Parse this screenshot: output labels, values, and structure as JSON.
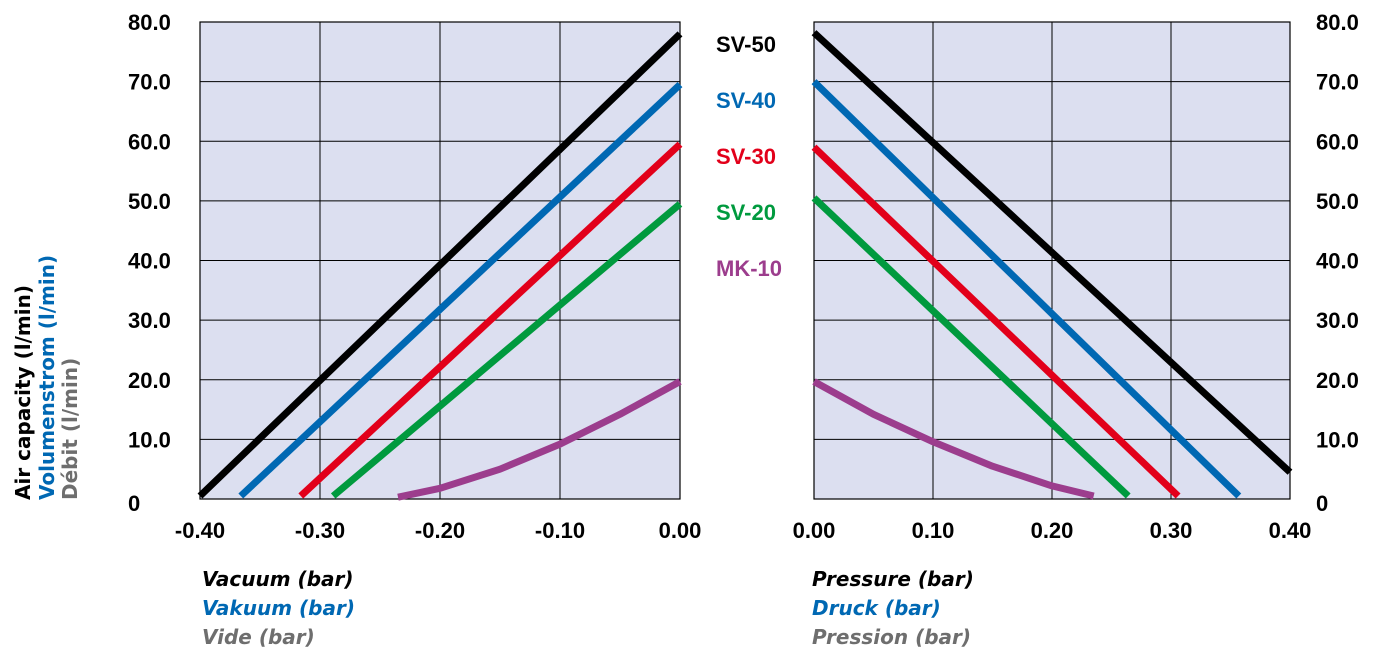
{
  "colors": {
    "plot_bg": "#dcdff0",
    "grid": "#000000",
    "english": "#000000",
    "german": "#0068b3",
    "french": "#6e6e6e"
  },
  "y_axis": {
    "labels": [
      "Air capacity (l/min)",
      "Volumenstrom (l/min)",
      "Débit (l/min)"
    ],
    "ticks": [
      "0",
      "10.0",
      "20.0",
      "30.0",
      "40.0",
      "50.0",
      "60.0",
      "70.0",
      "80.0"
    ]
  },
  "legend": [
    {
      "name": "SV-50",
      "color": "#000000"
    },
    {
      "name": "SV-40",
      "color": "#0068b3"
    },
    {
      "name": "SV-30",
      "color": "#e2001a"
    },
    {
      "name": "SV-20",
      "color": "#009a3e"
    },
    {
      "name": "MK-10",
      "color": "#9c3d8d"
    }
  ],
  "chart_data": [
    {
      "type": "line",
      "xlabel": [
        "Vacuum (bar)",
        "Vakuum (bar)",
        "Vide (bar)"
      ],
      "ylabel": [
        "Air capacity (l/min)",
        "Volumenstrom (l/min)",
        "Débit (l/min)"
      ],
      "xlim": [
        -0.4,
        0.0
      ],
      "ylim": [
        0,
        80
      ],
      "x_ticks": [
        "-0.40",
        "-0.30",
        "-0.20",
        "-0.10",
        "0.00"
      ],
      "x_tick_values": [
        -0.4,
        -0.3,
        -0.2,
        -0.1,
        0.0
      ],
      "grid": true,
      "series": [
        {
          "name": "SV-50",
          "color": "#000000",
          "points": [
            [
              -0.4,
              0.5
            ],
            [
              0.0,
              78.0
            ]
          ]
        },
        {
          "name": "SV-40",
          "color": "#0068b3",
          "points": [
            [
              -0.366,
              0.5
            ],
            [
              0.0,
              69.5
            ]
          ]
        },
        {
          "name": "SV-30",
          "color": "#e2001a",
          "points": [
            [
              -0.316,
              0.5
            ],
            [
              0.0,
              59.5
            ]
          ]
        },
        {
          "name": "SV-20",
          "color": "#009a3e",
          "points": [
            [
              -0.289,
              0.5
            ],
            [
              0.0,
              49.5
            ]
          ]
        },
        {
          "name": "MK-10",
          "color": "#9c3d8d",
          "points": [
            [
              -0.235,
              0.3
            ],
            [
              -0.2,
              1.8
            ],
            [
              -0.15,
              5.0
            ],
            [
              -0.1,
              9.2
            ],
            [
              -0.05,
              14.2
            ],
            [
              0.0,
              19.7
            ]
          ]
        }
      ]
    },
    {
      "type": "line",
      "xlabel": [
        "Pressure (bar)",
        "Druck (bar)",
        "Pression (bar)"
      ],
      "ylabel": [
        "Air capacity (l/min)",
        "Volumenstrom (l/min)",
        "Débit (l/min)"
      ],
      "xlim": [
        0.0,
        0.4
      ],
      "ylim": [
        0,
        80
      ],
      "x_ticks": [
        "0.00",
        "0.10",
        "0.20",
        "0.30",
        "0.40"
      ],
      "x_tick_values": [
        0.0,
        0.1,
        0.2,
        0.3,
        0.4
      ],
      "grid": true,
      "series": [
        {
          "name": "SV-50",
          "color": "#000000",
          "points": [
            [
              0.0,
              78.2
            ],
            [
              0.4,
              4.5
            ]
          ]
        },
        {
          "name": "SV-40",
          "color": "#0068b3",
          "points": [
            [
              0.0,
              70.0
            ],
            [
              0.357,
              0.5
            ]
          ]
        },
        {
          "name": "SV-30",
          "color": "#e2001a",
          "points": [
            [
              0.0,
              59.0
            ],
            [
              0.306,
              0.5
            ]
          ]
        },
        {
          "name": "SV-20",
          "color": "#009a3e",
          "points": [
            [
              0.0,
              50.5
            ],
            [
              0.264,
              0.5
            ]
          ]
        },
        {
          "name": "MK-10",
          "color": "#9c3d8d",
          "points": [
            [
              0.0,
              19.7
            ],
            [
              0.05,
              14.2
            ],
            [
              0.1,
              9.6
            ],
            [
              0.15,
              5.5
            ],
            [
              0.2,
              2.2
            ],
            [
              0.235,
              0.5
            ]
          ]
        }
      ]
    }
  ]
}
